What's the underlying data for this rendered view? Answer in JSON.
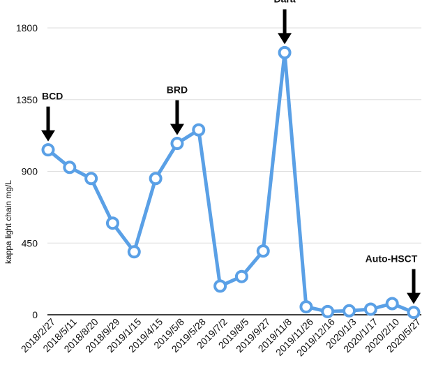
{
  "chart_data": {
    "type": "line",
    "ylabel": "kappa light chain mg/L",
    "xlabel": "",
    "title": "",
    "ylim": [
      0,
      1800
    ],
    "yticks": [
      0,
      450,
      900,
      1350,
      1800
    ],
    "grid": "horizontal",
    "categories": [
      "2018/2/27",
      "2018/5/11",
      "2018/8/20",
      "2018/9/29",
      "2019/1/15",
      "2019/4/15",
      "2019/5/8",
      "2019/5/28",
      "2019/7/2",
      "2019/8/5",
      "2019/9/27",
      "2019/11/8",
      "2019/11/26",
      "2019/12/16",
      "2020/1/3",
      "2020/1/17",
      "2020/2/10",
      "2020/5/27"
    ],
    "series": [
      {
        "values": [
          1035,
          925,
          855,
          575,
          395,
          855,
          1075,
          1160,
          180,
          240,
          400,
          1645,
          50,
          20,
          25,
          35,
          70,
          15
        ]
      }
    ],
    "annotations": [
      {
        "label": "BCD",
        "index": 0
      },
      {
        "label": "BRD",
        "index": 6
      },
      {
        "label": "Dara",
        "index": 11
      },
      {
        "label": "Auto-HSCT",
        "index": 17
      }
    ],
    "colors": {
      "line": "#5aa0e6",
      "grid": "#dddddd",
      "axis": "#000000",
      "arrow": "#000000"
    }
  }
}
